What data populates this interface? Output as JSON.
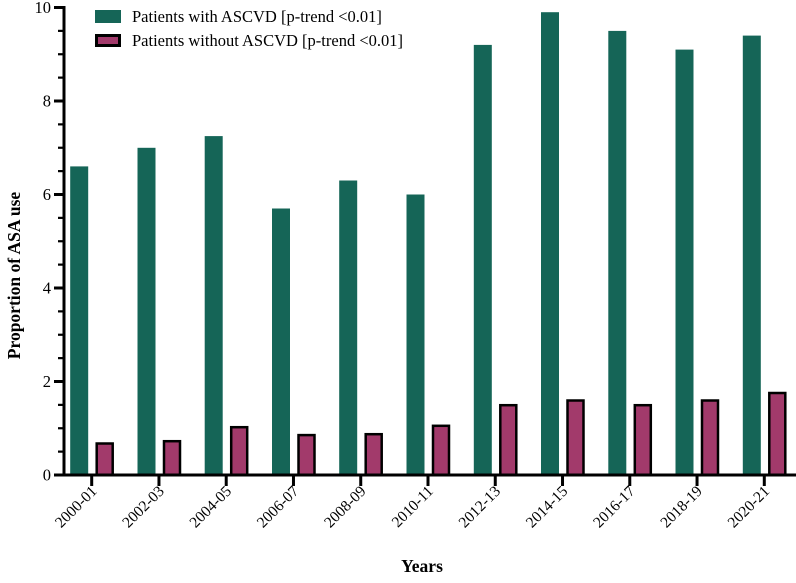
{
  "chart_data": {
    "type": "bar",
    "title": "",
    "xlabel": "Years",
    "ylabel": "Proportion of ASA use",
    "ylim": [
      0,
      10
    ],
    "y_major_ticks": [
      0,
      2,
      4,
      6,
      8,
      10
    ],
    "y_minor_tick_step": 0.5,
    "grid": false,
    "legend_position": "top-left-inside",
    "categories": [
      "2000-01",
      "2002-03",
      "2004-05",
      "2006-07",
      "2008-09",
      "2010-11",
      "2012-13",
      "2014-15",
      "2016-17",
      "2018-19",
      "2020-21"
    ],
    "series": [
      {
        "name": "Patients with ASCVD [p-trend <0.01]",
        "color": "#156557",
        "border_color": "none",
        "values": [
          6.6,
          7.0,
          7.25,
          5.7,
          6.3,
          6.0,
          9.2,
          9.9,
          9.5,
          9.1,
          9.4
        ]
      },
      {
        "name": "Patients without ASCVD [p-trend <0.01]",
        "color": "#A23A6B",
        "border_color": "#000000",
        "values": [
          0.7,
          0.75,
          1.05,
          0.88,
          0.9,
          1.08,
          1.52,
          1.62,
          1.52,
          1.62,
          1.78
        ]
      }
    ],
    "axis_color": "#000000",
    "background_color": "#ffffff"
  }
}
